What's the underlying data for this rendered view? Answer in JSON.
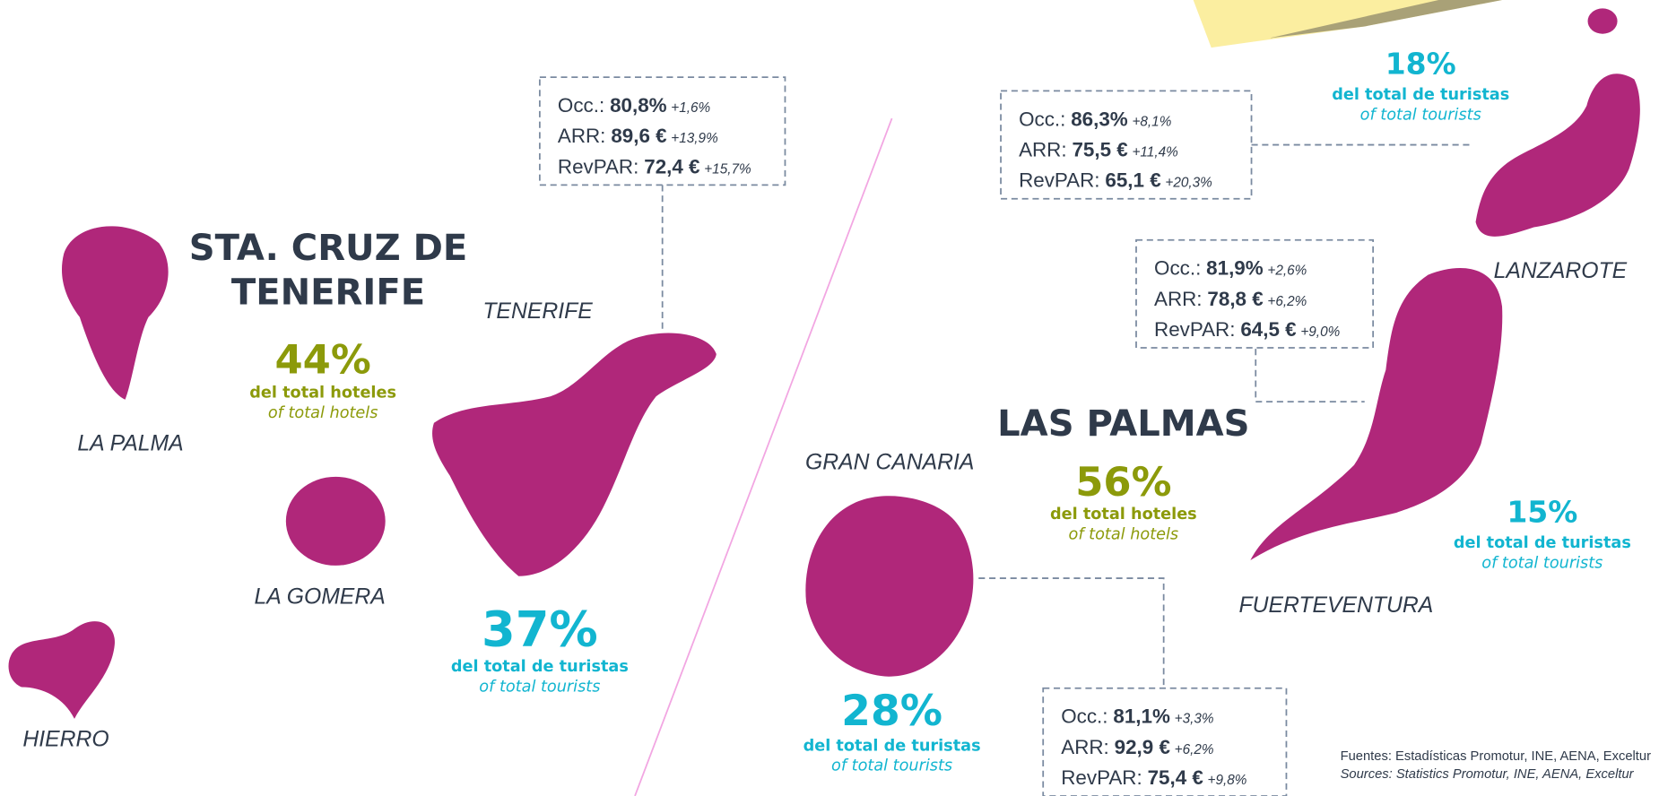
{
  "provinces": [
    {
      "name_lines": [
        "STA. CRUZ DE",
        "TENERIFE"
      ],
      "hotels_share": "44%",
      "hotels_es": "del total hoteles",
      "hotels_en": "of total hotels"
    },
    {
      "name_lines": [
        "LAS PALMAS"
      ],
      "hotels_share": "56%",
      "hotels_es": "del total hoteles",
      "hotels_en": "of total hotels"
    }
  ],
  "islands": [
    "LA PALMA",
    "LA GOMERA",
    "HIERRO",
    "TENERIFE",
    "GRAN CANARIA",
    "FUERTEVENTURA",
    "LANZAROTE"
  ],
  "tourist_shares": [
    {
      "value": "37%",
      "es": "del total de turistas",
      "en": "of total tourists"
    },
    {
      "value": "28%",
      "es": "del total de turistas",
      "en": "of total tourists"
    },
    {
      "value": "18%",
      "es": "del total de turistas",
      "en": "of total tourists"
    },
    {
      "value": "15%",
      "es": "del total de turistas",
      "en": "of total tourists"
    }
  ],
  "stat_boxes": [
    {
      "rows": [
        [
          "Occ.:",
          "80,8%",
          "+1,6%"
        ],
        [
          "ARR:",
          "89,6 €",
          "+13,9%"
        ],
        [
          "RevPAR:",
          "72,4 €",
          "+15,7%"
        ]
      ]
    },
    {
      "rows": [
        [
          "Occ.:",
          "86,3%",
          "+8,1%"
        ],
        [
          "ARR:",
          "75,5 €",
          "+11,4%"
        ],
        [
          "RevPAR:",
          "65,1 €",
          "+20,3%"
        ]
      ]
    },
    {
      "rows": [
        [
          "Occ.:",
          "81,9%",
          "+2,6%"
        ],
        [
          "ARR:",
          "78,8 €",
          "+6,2%"
        ],
        [
          "RevPAR:",
          "64,5 €",
          "+9,0%"
        ]
      ]
    },
    {
      "rows": [
        [
          "Occ.:",
          "81,1%",
          "+3,3%"
        ],
        [
          "ARR:",
          "92,9 €",
          "+6,2%"
        ],
        [
          "RevPAR:",
          "75,4 €",
          "+9,8%"
        ]
      ]
    }
  ],
  "sources": [
    "Fuentes: Estadísticas Promotur, INE, AENA, Exceltur",
    "Sources: Statistics Promotur, INE, AENA, Exceltur"
  ]
}
